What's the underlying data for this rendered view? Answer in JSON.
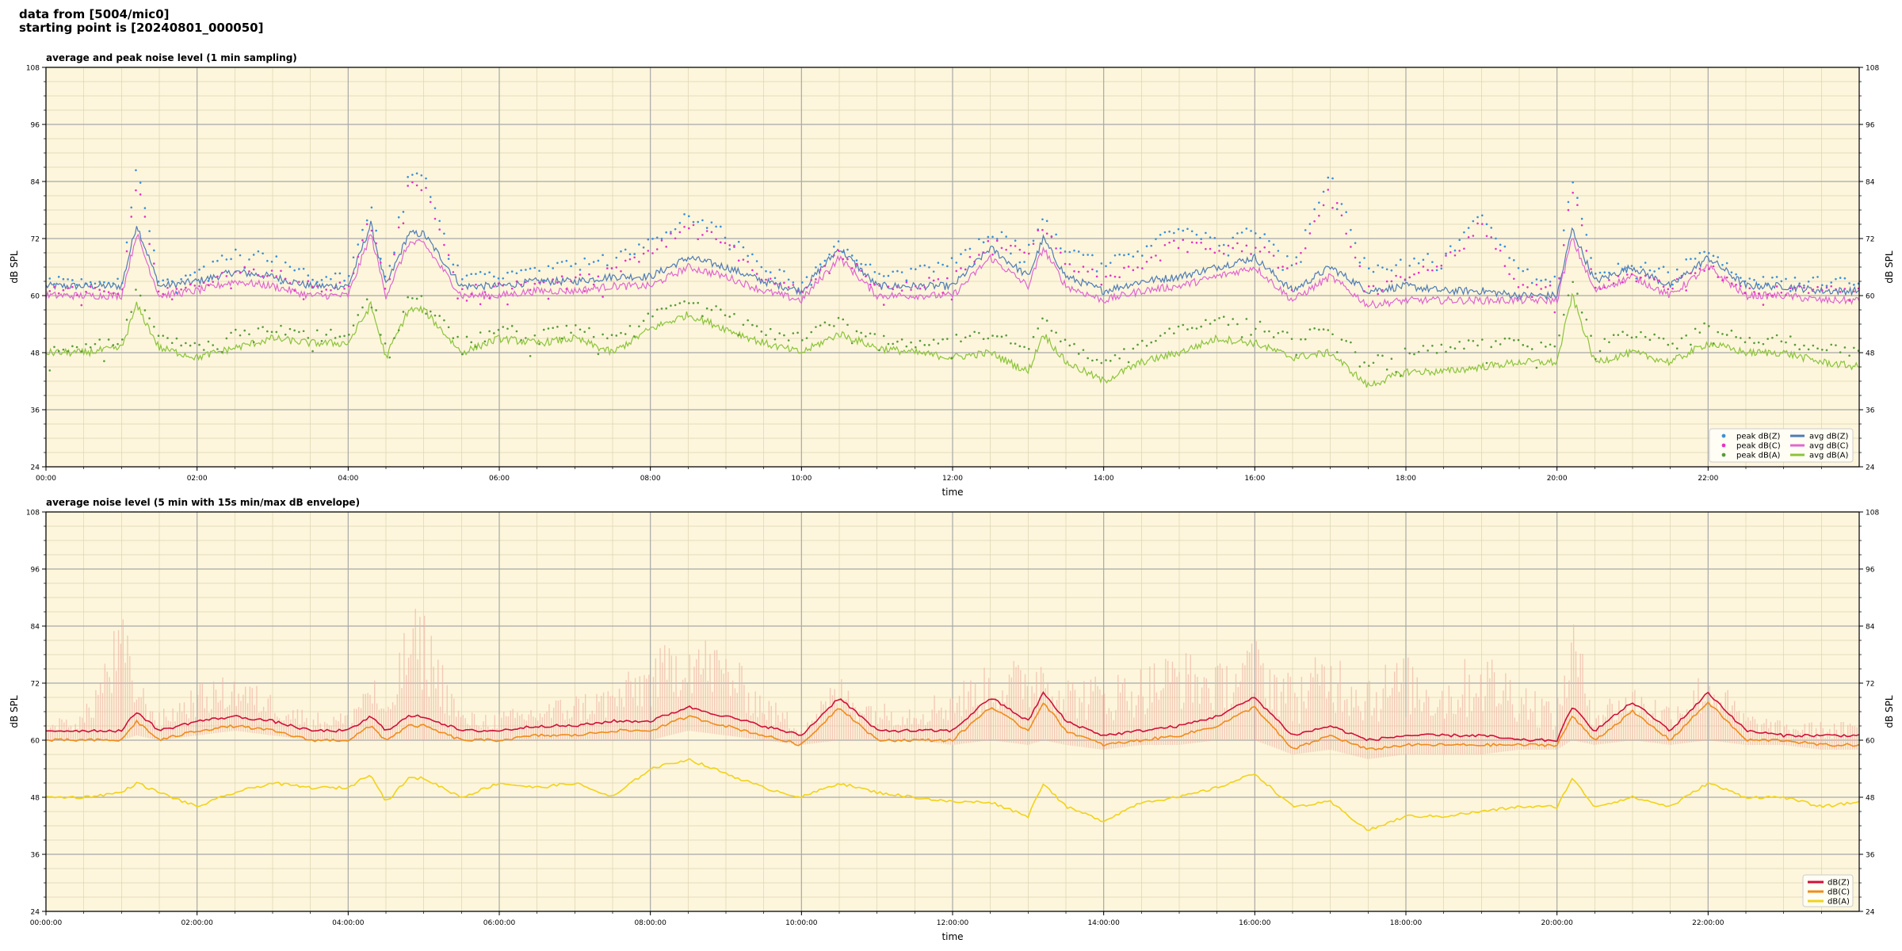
{
  "header": {
    "line1": "data from [5004/mic0]",
    "line2": "starting point is [20240801_000050]"
  },
  "colors": {
    "plot_bg": "#fdf6dc",
    "avg_z": "#4f7bb5",
    "avg_c": "#e066d0",
    "avg_a": "#8cc43a",
    "peak_z": "#3b8fd8",
    "peak_c": "#e633c4",
    "peak_a": "#5a9a3a",
    "db_z": "#d0103a",
    "db_c": "#f08c1a",
    "db_a": "#f2d21a",
    "envelope": "#f0b8a8"
  },
  "chart_data": [
    {
      "type": "line",
      "title": "average and peak noise level (1 min sampling)",
      "xlabel": "time",
      "ylabel": "dB SPL",
      "ylim": [
        24,
        108
      ],
      "xlim_hours": [
        0,
        24
      ],
      "yticks": [
        "24",
        "36",
        "48",
        "60",
        "72",
        "84",
        "96",
        "108"
      ],
      "xtick_labels": [
        "00:00",
        "02:00",
        "04:00",
        "06:00",
        "08:00",
        "10:00",
        "12:00",
        "14:00",
        "16:00",
        "18:00",
        "20:00",
        "22:00"
      ],
      "grid": true,
      "legend_position": "lower-right",
      "legend": [
        "peak dB(Z)",
        "peak dB(C)",
        "peak dB(A)",
        "avg dB(Z)",
        "avg dB(C)",
        "avg dB(A)"
      ],
      "x_hours": [
        0,
        0.5,
        1,
        1.2,
        1.5,
        2,
        2.5,
        3,
        3.5,
        4,
        4.3,
        4.5,
        4.8,
        5,
        5.5,
        6,
        6.5,
        7,
        7.5,
        8,
        8.5,
        9,
        9.5,
        10,
        10.5,
        11,
        11.5,
        12,
        12.5,
        13,
        13.2,
        13.5,
        14,
        14.5,
        15,
        15.5,
        16,
        16.5,
        17,
        17.5,
        18,
        18.5,
        19,
        19.5,
        20,
        20.2,
        20.5,
        21,
        21.5,
        22,
        22.5,
        23,
        23.5,
        24
      ],
      "series": [
        {
          "name": "avg dB(Z)",
          "values": [
            62,
            62,
            62,
            75,
            62,
            63,
            65,
            64,
            62,
            62,
            75,
            62,
            73,
            73,
            62,
            62,
            63,
            63,
            64,
            64,
            68,
            66,
            63,
            61,
            70,
            62,
            62,
            62,
            70,
            64,
            72,
            64,
            61,
            63,
            64,
            66,
            68,
            61,
            66,
            61,
            62,
            61,
            61,
            60,
            60,
            74,
            63,
            66,
            62,
            68,
            62,
            62,
            61,
            61
          ]
        },
        {
          "name": "avg dB(C)",
          "values": [
            60,
            60,
            60,
            73,
            60,
            61,
            63,
            62,
            60,
            60,
            73,
            60,
            71,
            71,
            60,
            60,
            61,
            61,
            62,
            62,
            66,
            64,
            61,
            59,
            68,
            60,
            60,
            60,
            68,
            62,
            70,
            62,
            59,
            61,
            62,
            64,
            66,
            59,
            64,
            58,
            59,
            59,
            59,
            59,
            59,
            72,
            61,
            64,
            60,
            66,
            60,
            60,
            59,
            59
          ]
        },
        {
          "name": "avg dB(A)",
          "values": [
            48,
            48,
            49,
            58,
            49,
            47,
            49,
            51,
            50,
            50,
            58,
            47,
            57,
            57,
            48,
            51,
            50,
            51,
            48,
            53,
            56,
            53,
            50,
            48,
            52,
            49,
            48,
            47,
            48,
            44,
            52,
            46,
            42,
            46,
            48,
            51,
            50,
            47,
            48,
            41,
            44,
            44,
            45,
            46,
            46,
            60,
            46,
            48,
            46,
            50,
            48,
            48,
            46,
            45
          ]
        },
        {
          "name": "peak dB(Z)",
          "values": [
            64,
            64,
            64,
            88,
            64,
            66,
            70,
            69,
            65,
            65,
            80,
            64,
            86,
            86,
            65,
            65,
            66,
            68,
            69,
            72,
            78,
            74,
            67,
            64,
            72,
            66,
            66,
            68,
            74,
            72,
            78,
            70,
            68,
            70,
            76,
            72,
            75,
            68,
            86,
            66,
            68,
            70,
            78,
            66,
            64,
            86,
            66,
            68,
            66,
            70,
            64,
            64,
            64,
            64
          ]
        },
        {
          "name": "peak dB(C)",
          "values": [
            62,
            62,
            62,
            86,
            62,
            63,
            66,
            66,
            63,
            63,
            78,
            62,
            84,
            84,
            62,
            63,
            64,
            65,
            66,
            70,
            76,
            72,
            64,
            62,
            70,
            63,
            63,
            65,
            72,
            70,
            76,
            67,
            65,
            67,
            74,
            70,
            72,
            65,
            84,
            62,
            65,
            68,
            76,
            63,
            62,
            84,
            63,
            65,
            63,
            67,
            62,
            62,
            62,
            62
          ]
        },
        {
          "name": "peak dB(A)",
          "values": [
            50,
            50,
            52,
            62,
            52,
            50,
            53,
            54,
            53,
            53,
            62,
            50,
            60,
            60,
            51,
            54,
            53,
            54,
            52,
            57,
            60,
            57,
            54,
            52,
            56,
            52,
            51,
            52,
            53,
            50,
            56,
            51,
            47,
            51,
            54,
            56,
            55,
            52,
            54,
            47,
            49,
            50,
            51,
            51,
            50,
            64,
            51,
            53,
            51,
            55,
            52,
            52,
            50,
            49
          ]
        }
      ]
    },
    {
      "type": "line",
      "title": "average noise level (5 min with 15s min/max dB envelope)",
      "xlabel": "time",
      "ylabel": "dB SPL",
      "ylim": [
        24,
        108
      ],
      "xlim_hours": [
        0,
        24
      ],
      "yticks": [
        "24",
        "36",
        "48",
        "60",
        "72",
        "84",
        "96",
        "108"
      ],
      "xtick_labels": [
        "00:00:00",
        "02:00:00",
        "04:00:00",
        "06:00:00",
        "08:00:00",
        "10:00:00",
        "12:00:00",
        "14:00:00",
        "16:00:00",
        "18:00:00",
        "20:00:00",
        "22:00:00"
      ],
      "grid": true,
      "legend_position": "lower-right",
      "legend": [
        "dB(Z)",
        "dB(C)",
        "dB(A)"
      ],
      "x_hours": [
        0,
        0.5,
        1,
        1.2,
        1.5,
        2,
        2.5,
        3,
        3.5,
        4,
        4.3,
        4.5,
        4.8,
        5,
        5.5,
        6,
        6.5,
        7,
        7.5,
        8,
        8.5,
        9,
        9.5,
        10,
        10.5,
        11,
        11.5,
        12,
        12.5,
        13,
        13.2,
        13.5,
        14,
        14.5,
        15,
        15.5,
        16,
        16.5,
        17,
        17.5,
        18,
        18.5,
        19,
        19.5,
        20,
        20.2,
        20.5,
        21,
        21.5,
        22,
        22.5,
        23,
        23.5,
        24
      ],
      "series": [
        {
          "name": "dB(Z)",
          "values": [
            62,
            62,
            62,
            66,
            62,
            64,
            65,
            64,
            62,
            62,
            65,
            62,
            65,
            65,
            62,
            62,
            63,
            63,
            64,
            64,
            67,
            65,
            63,
            61,
            69,
            62,
            62,
            62,
            69,
            64,
            70,
            64,
            61,
            62,
            63,
            65,
            69,
            61,
            63,
            60,
            61,
            61,
            61,
            60,
            60,
            67,
            62,
            68,
            62,
            70,
            62,
            61,
            61,
            61
          ]
        },
        {
          "name": "dB(C)",
          "values": [
            60,
            60,
            60,
            64,
            60,
            62,
            63,
            62,
            60,
            60,
            63,
            60,
            63,
            63,
            60,
            60,
            61,
            61,
            62,
            62,
            65,
            63,
            61,
            59,
            67,
            60,
            60,
            60,
            67,
            62,
            68,
            62,
            59,
            60,
            61,
            63,
            67,
            58,
            61,
            58,
            59,
            59,
            59,
            59,
            59,
            65,
            60,
            66,
            60,
            68,
            60,
            60,
            59,
            59
          ]
        },
        {
          "name": "dB(A)",
          "values": [
            48,
            48,
            49,
            51,
            49,
            46,
            49,
            51,
            50,
            50,
            53,
            47,
            52,
            52,
            48,
            51,
            50,
            51,
            48,
            54,
            56,
            53,
            50,
            48,
            51,
            49,
            48,
            47,
            47,
            44,
            51,
            46,
            43,
            47,
            48,
            50,
            53,
            46,
            47,
            41,
            44,
            44,
            45,
            46,
            46,
            52,
            46,
            48,
            46,
            51,
            48,
            48,
            46,
            47
          ]
        }
      ],
      "envelope_max": [
        64,
        66,
        88,
        74,
        66,
        72,
        74,
        70,
        66,
        66,
        76,
        66,
        88,
        88,
        66,
        66,
        68,
        70,
        72,
        78,
        84,
        80,
        70,
        64,
        74,
        68,
        68,
        72,
        76,
        78,
        80,
        74,
        74,
        76,
        80,
        76,
        82,
        74,
        80,
        76,
        78,
        74,
        80,
        74,
        68,
        88,
        68,
        72,
        68,
        76,
        66,
        64,
        64,
        64
      ],
      "envelope_min": [
        60,
        60,
        60,
        61,
        60,
        61,
        62,
        61,
        60,
        60,
        60,
        60,
        60,
        60,
        60,
        60,
        60,
        60,
        60,
        60,
        62,
        61,
        60,
        59,
        60,
        60,
        60,
        59,
        60,
        59,
        60,
        59,
        58,
        59,
        59,
        60,
        60,
        57,
        58,
        56,
        57,
        57,
        57,
        58,
        58,
        60,
        59,
        60,
        59,
        60,
        59,
        59,
        58,
        58
      ]
    }
  ]
}
